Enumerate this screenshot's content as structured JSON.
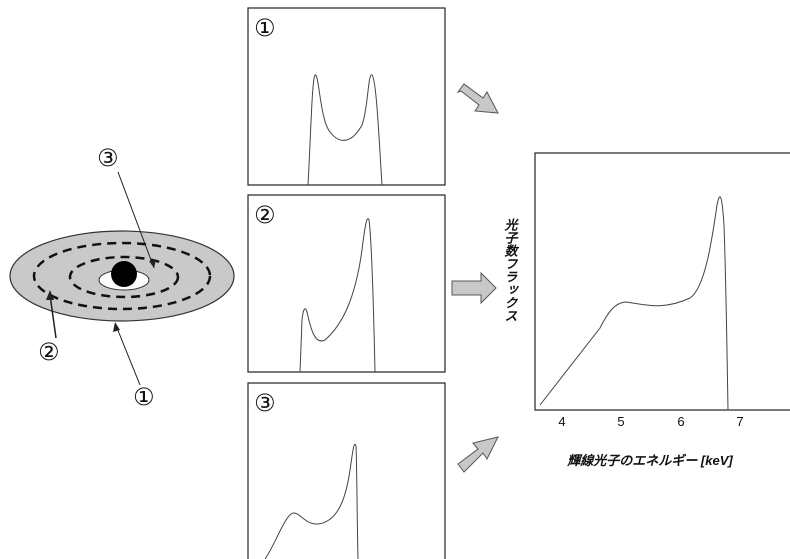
{
  "disk": {
    "labels": [
      "③",
      "②",
      "①"
    ]
  },
  "panels": [
    "①",
    "②",
    "③"
  ],
  "spectrum": {
    "y_label": "光子数フラックス",
    "x_label": "輝線光子のエネルギー [keV]",
    "x_ticks": [
      4,
      5,
      6,
      7
    ]
  }
}
